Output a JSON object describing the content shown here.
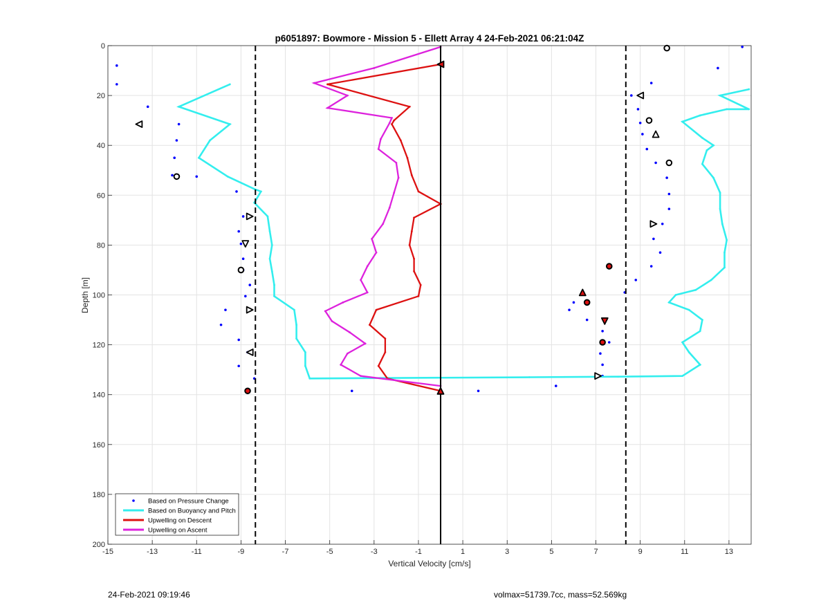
{
  "chart_data": {
    "type": "line",
    "title": "p6051897: Bowmore - Mission 5 - Ellett Array 4 24-Feb-2021 06:21:04Z",
    "xlabel": "Vertical Velocity [cm/s]",
    "ylabel": "Depth [m]",
    "xlim": [
      -15,
      14
    ],
    "ylim": [
      0,
      200
    ],
    "y_reversed": true,
    "grid": true,
    "xticks": [
      -15,
      -13,
      -11,
      -9,
      -7,
      -5,
      -3,
      -1,
      1,
      3,
      5,
      7,
      9,
      11,
      13
    ],
    "yticks": [
      0,
      20,
      40,
      60,
      80,
      100,
      120,
      140,
      160,
      180,
      200
    ],
    "legend_position": "bottom-left",
    "vertical_lines": [
      {
        "x": -8.35,
        "style": "dashed",
        "color": "#000000"
      },
      {
        "x": 0,
        "style": "solid",
        "color": "#000000"
      },
      {
        "x": 8.35,
        "style": "dashed",
        "color": "#000000"
      }
    ],
    "series": [
      {
        "name": "Based on Pressure Change",
        "style": "dots",
        "color": "#0000ff",
        "points": [
          [
            -14.6,
            8
          ],
          [
            -14.6,
            15.5
          ],
          [
            -13.2,
            24.5
          ],
          [
            -11.8,
            31.5
          ],
          [
            -11.9,
            38
          ],
          [
            -12,
            45
          ],
          [
            -12.1,
            52
          ],
          [
            -11,
            52.5
          ],
          [
            -9.2,
            58.5
          ],
          [
            -8.9,
            68.5
          ],
          [
            -9.1,
            74.5
          ],
          [
            -9,
            79.5
          ],
          [
            -8.9,
            85.5
          ],
          [
            -8.9,
            90
          ],
          [
            -8.6,
            96
          ],
          [
            -8.8,
            100.5
          ],
          [
            -9.7,
            106
          ],
          [
            -9.9,
            112
          ],
          [
            -9.1,
            118
          ],
          [
            -8.7,
            123
          ],
          [
            -9.1,
            128.5
          ],
          [
            -8.4,
            133.5
          ],
          [
            -4,
            138.5
          ],
          [
            1.7,
            138.5
          ],
          [
            5.2,
            136.5
          ],
          [
            13.6,
            0.5
          ],
          [
            12.5,
            9
          ],
          [
            9.5,
            15
          ],
          [
            8.6,
            20
          ],
          [
            8.9,
            25.5
          ],
          [
            9,
            31
          ],
          [
            9.1,
            35.5
          ],
          [
            9.3,
            41.5
          ],
          [
            9.7,
            47
          ],
          [
            10.2,
            53
          ],
          [
            10.3,
            59.5
          ],
          [
            10.3,
            65.5
          ],
          [
            10,
            71.5
          ],
          [
            9.6,
            77.5
          ],
          [
            9.9,
            83
          ],
          [
            9.5,
            88.5
          ],
          [
            8.8,
            94
          ],
          [
            8.3,
            99
          ],
          [
            6,
            103
          ],
          [
            5.8,
            106
          ],
          [
            6.6,
            110
          ],
          [
            7.3,
            114.5
          ],
          [
            7.6,
            119
          ],
          [
            7.2,
            123.5
          ],
          [
            7.3,
            128
          ],
          [
            7.3,
            132.5
          ]
        ]
      },
      {
        "name": "Based on Buoyancy and Pitch",
        "style": "line",
        "color": "#33eeee",
        "points": [
          [
            -9.5,
            15.5
          ],
          [
            -11.8,
            24.5
          ],
          [
            -9.5,
            31.5
          ],
          [
            -10.4,
            38
          ],
          [
            -10.9,
            45
          ],
          [
            -9.6,
            52.5
          ],
          [
            -8.4,
            57.5
          ],
          [
            -8.1,
            58.5
          ],
          [
            -8.4,
            63
          ],
          [
            -7.8,
            68.5
          ],
          [
            -7.7,
            74.5
          ],
          [
            -7.6,
            80
          ],
          [
            -7.7,
            85.5
          ],
          [
            -7.6,
            90.5
          ],
          [
            -7.5,
            96
          ],
          [
            -7.5,
            100.5
          ],
          [
            -6.6,
            106
          ],
          [
            -6.5,
            112
          ],
          [
            -6.5,
            117.5
          ],
          [
            -6.1,
            123
          ],
          [
            -6.1,
            128.5
          ],
          [
            -5.9,
            133.5
          ],
          [
            4,
            133
          ],
          [
            8,
            132.8
          ],
          [
            10.9,
            132.5
          ],
          [
            11.7,
            128
          ],
          [
            11.2,
            123
          ],
          [
            10.9,
            119
          ],
          [
            11.7,
            114.5
          ],
          [
            11.8,
            110
          ],
          [
            11.2,
            106
          ],
          [
            10.3,
            103
          ],
          [
            10.6,
            100
          ],
          [
            11.5,
            98
          ],
          [
            12.2,
            94
          ],
          [
            12.8,
            89
          ],
          [
            12.8,
            83
          ],
          [
            12.9,
            78
          ],
          [
            12.7,
            71.5
          ],
          [
            12.6,
            65.5
          ],
          [
            12.6,
            59
          ],
          [
            12.3,
            53
          ],
          [
            11.8,
            47.5
          ],
          [
            12,
            42
          ],
          [
            12.3,
            40
          ],
          [
            11.8,
            37
          ],
          [
            10.9,
            30.5
          ],
          [
            11.7,
            28
          ],
          [
            12.9,
            25.5
          ],
          [
            13.9,
            25.5
          ],
          [
            12.6,
            20
          ],
          [
            13.9,
            17.5
          ]
        ]
      },
      {
        "name": "Upwelling on Descent",
        "style": "line",
        "color": "#dd1111",
        "points": [
          [
            0,
            7.5
          ],
          [
            -5.1,
            15.5
          ],
          [
            -1.4,
            24.5
          ],
          [
            -2.1,
            30
          ],
          [
            -2.2,
            31.5
          ],
          [
            -1.8,
            38
          ],
          [
            -1.5,
            45
          ],
          [
            -1.3,
            52
          ],
          [
            -1,
            58.5
          ],
          [
            0,
            63.5
          ],
          [
            -1.2,
            69
          ],
          [
            -1.3,
            74.5
          ],
          [
            -1.4,
            80
          ],
          [
            -1.2,
            85.5
          ],
          [
            -1.2,
            90.5
          ],
          [
            -0.9,
            96
          ],
          [
            -1,
            100.5
          ],
          [
            -2.9,
            106
          ],
          [
            -3.2,
            112
          ],
          [
            -2.5,
            117.5
          ],
          [
            -2.5,
            123
          ],
          [
            -2.8,
            128.5
          ],
          [
            -2.4,
            133.5
          ],
          [
            0,
            138.5
          ]
        ]
      },
      {
        "name": "Upwelling on Ascent",
        "style": "line",
        "color": "#dd22dd",
        "points": [
          [
            0,
            0.5
          ],
          [
            -3,
            9
          ],
          [
            -5.7,
            15
          ],
          [
            -4.2,
            20
          ],
          [
            -5.1,
            25
          ],
          [
            -2.2,
            29
          ],
          [
            -2.3,
            31
          ],
          [
            -2.7,
            37.5
          ],
          [
            -2.8,
            41.5
          ],
          [
            -2,
            47
          ],
          [
            -1.9,
            53
          ],
          [
            -2.1,
            59
          ],
          [
            -2.3,
            65
          ],
          [
            -2.6,
            71.5
          ],
          [
            -3.1,
            77.5
          ],
          [
            -2.9,
            83
          ],
          [
            -3.3,
            88.5
          ],
          [
            -3.6,
            94
          ],
          [
            -3.3,
            99
          ],
          [
            -4.4,
            103
          ],
          [
            -5.2,
            106.5
          ],
          [
            -4.9,
            110.5
          ],
          [
            -4.1,
            115
          ],
          [
            -3.4,
            119.5
          ],
          [
            -4.2,
            123.5
          ],
          [
            -4.5,
            128
          ],
          [
            -3.6,
            132.5
          ],
          [
            0,
            136.5
          ]
        ]
      }
    ],
    "glyph_markers": [
      {
        "x": 10.2,
        "y": 1,
        "shape": "round",
        "fill": "#ffffff"
      },
      {
        "x": 9,
        "y": 20,
        "shape": "tri-left",
        "fill": "#ffffff"
      },
      {
        "x": -13.6,
        "y": 31.5,
        "shape": "tri-left",
        "fill": "#ffffff"
      },
      {
        "x": 9.4,
        "y": 30,
        "shape": "round",
        "fill": "#ffffff"
      },
      {
        "x": 9.7,
        "y": 35.5,
        "shape": "tri-up",
        "fill": "#ffffff"
      },
      {
        "x": 10.3,
        "y": 47,
        "shape": "round",
        "fill": "#ffffff"
      },
      {
        "x": -11.9,
        "y": 52.5,
        "shape": "round",
        "fill": "#ffffff"
      },
      {
        "x": -8.6,
        "y": 68.5,
        "shape": "tri-right",
        "fill": "#ffffff"
      },
      {
        "x": 9.6,
        "y": 71.5,
        "shape": "tri-right",
        "fill": "#ffffff"
      },
      {
        "x": -8.8,
        "y": 79.5,
        "shape": "tri-down",
        "fill": "#ffffff"
      },
      {
        "x": -9,
        "y": 90,
        "shape": "round",
        "fill": "#ffffff"
      },
      {
        "x": -8.6,
        "y": 106,
        "shape": "tri-right",
        "fill": "#ffffff"
      },
      {
        "x": -8.6,
        "y": 123,
        "shape": "tri-left",
        "fill": "#ffffff"
      },
      {
        "x": 7.1,
        "y": 132.5,
        "shape": "tri-right",
        "fill": "#ffffff"
      },
      {
        "x": 0,
        "y": 7.5,
        "shape": "tri-left",
        "fill": "#dd1111"
      },
      {
        "x": 7.6,
        "y": 88.5,
        "shape": "round",
        "fill": "#dd1111"
      },
      {
        "x": 6.4,
        "y": 99,
        "shape": "tri-up",
        "fill": "#dd1111"
      },
      {
        "x": 6.6,
        "y": 103,
        "shape": "round",
        "fill": "#dd1111"
      },
      {
        "x": 7.4,
        "y": 110.5,
        "shape": "tri-down",
        "fill": "#dd1111"
      },
      {
        "x": 7.3,
        "y": 119,
        "shape": "round",
        "fill": "#dd1111"
      },
      {
        "x": -8.7,
        "y": 138.5,
        "shape": "round",
        "fill": "#dd1111"
      },
      {
        "x": 0,
        "y": 138.5,
        "shape": "tri-up",
        "fill": "#dd1111"
      }
    ]
  },
  "footer": {
    "left": "24-Feb-2021 09:19:46",
    "right": "volmax=51739.7cc, mass=52.569kg"
  }
}
